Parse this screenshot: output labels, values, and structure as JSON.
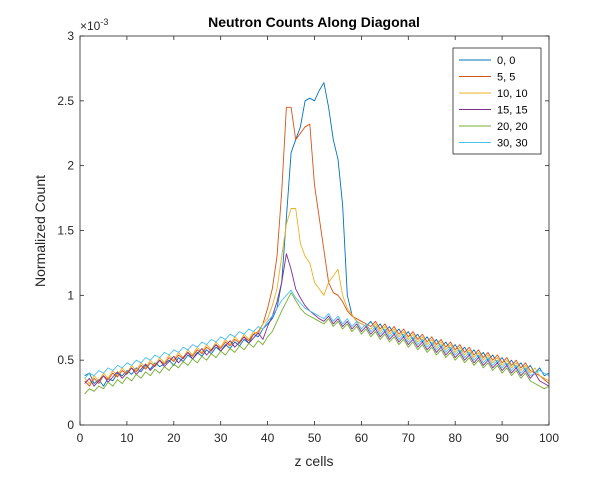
{
  "chart_data": {
    "type": "line",
    "title": "Neutron Counts Along Diagonal",
    "xlabel": "z cells",
    "ylabel": "Normalized Count",
    "y_exponent_label": "×10",
    "y_exponent_power": "-3",
    "xlim": [
      0,
      100
    ],
    "ylim": [
      0,
      3
    ],
    "x_ticks": [
      0,
      10,
      20,
      30,
      40,
      50,
      60,
      70,
      80,
      90,
      100
    ],
    "x_tick_labels": [
      "0",
      "10",
      "20",
      "30",
      "40",
      "50",
      "60",
      "70",
      "80",
      "90",
      "100"
    ],
    "y_ticks": [
      0,
      0.5,
      1,
      1.5,
      2,
      2.5,
      3
    ],
    "y_tick_labels": [
      "0",
      "0.5",
      "1",
      "1.5",
      "2",
      "2.5",
      "3"
    ],
    "grid": false,
    "legend_position": "top-right",
    "x": [
      1,
      2,
      3,
      4,
      5,
      6,
      7,
      8,
      9,
      10,
      11,
      12,
      13,
      14,
      15,
      16,
      17,
      18,
      19,
      20,
      21,
      22,
      23,
      24,
      25,
      26,
      27,
      28,
      29,
      30,
      31,
      32,
      33,
      34,
      35,
      36,
      37,
      38,
      39,
      40,
      41,
      42,
      43,
      44,
      45,
      46,
      47,
      48,
      49,
      50,
      51,
      52,
      53,
      54,
      55,
      56,
      57,
      58,
      59,
      60,
      61,
      62,
      63,
      64,
      65,
      66,
      67,
      68,
      69,
      70,
      71,
      72,
      73,
      74,
      75,
      76,
      77,
      78,
      79,
      80,
      81,
      82,
      83,
      84,
      85,
      86,
      87,
      88,
      89,
      90,
      91,
      92,
      93,
      94,
      95,
      96,
      97,
      98,
      99,
      100
    ],
    "series": [
      {
        "name": "0, 0",
        "color": "#0072BD",
        "values": [
          0.38,
          0.4,
          0.32,
          0.35,
          0.3,
          0.36,
          0.34,
          0.4,
          0.38,
          0.42,
          0.39,
          0.44,
          0.41,
          0.46,
          0.43,
          0.48,
          0.45,
          0.47,
          0.5,
          0.46,
          0.52,
          0.49,
          0.54,
          0.51,
          0.56,
          0.53,
          0.58,
          0.55,
          0.6,
          0.57,
          0.62,
          0.59,
          0.64,
          0.61,
          0.66,
          0.63,
          0.7,
          0.68,
          0.74,
          0.78,
          0.82,
          0.9,
          1.1,
          1.6,
          2.1,
          2.2,
          2.3,
          2.5,
          2.52,
          2.5,
          2.58,
          2.64,
          2.45,
          2.2,
          2.05,
          1.7,
          1.0,
          0.85,
          0.8,
          0.78,
          0.76,
          0.8,
          0.74,
          0.78,
          0.72,
          0.76,
          0.7,
          0.74,
          0.68,
          0.72,
          0.66,
          0.7,
          0.64,
          0.68,
          0.62,
          0.66,
          0.6,
          0.64,
          0.58,
          0.62,
          0.56,
          0.6,
          0.54,
          0.58,
          0.52,
          0.56,
          0.5,
          0.54,
          0.48,
          0.52,
          0.46,
          0.5,
          0.44,
          0.48,
          0.42,
          0.46,
          0.4,
          0.44,
          0.38,
          0.4
        ]
      },
      {
        "name": "5, 5",
        "color": "#D95319",
        "values": [
          0.34,
          0.3,
          0.36,
          0.32,
          0.38,
          0.35,
          0.4,
          0.37,
          0.42,
          0.39,
          0.44,
          0.41,
          0.46,
          0.43,
          0.48,
          0.45,
          0.5,
          0.47,
          0.52,
          0.49,
          0.54,
          0.51,
          0.56,
          0.53,
          0.58,
          0.55,
          0.6,
          0.57,
          0.62,
          0.59,
          0.64,
          0.61,
          0.66,
          0.63,
          0.68,
          0.65,
          0.7,
          0.72,
          0.78,
          0.9,
          1.05,
          1.3,
          1.8,
          2.45,
          2.45,
          2.2,
          2.25,
          2.3,
          2.32,
          1.85,
          1.6,
          1.35,
          1.1,
          1.02,
          1.0,
          0.95,
          0.88,
          0.84,
          0.82,
          0.8,
          0.78,
          0.76,
          0.8,
          0.74,
          0.78,
          0.72,
          0.76,
          0.7,
          0.74,
          0.68,
          0.72,
          0.66,
          0.7,
          0.64,
          0.68,
          0.62,
          0.66,
          0.6,
          0.64,
          0.58,
          0.62,
          0.56,
          0.6,
          0.54,
          0.58,
          0.52,
          0.56,
          0.5,
          0.54,
          0.48,
          0.52,
          0.46,
          0.5,
          0.44,
          0.48,
          0.42,
          0.4,
          0.38,
          0.35,
          0.32
        ]
      },
      {
        "name": "10, 10",
        "color": "#EDB120",
        "values": [
          0.36,
          0.32,
          0.38,
          0.34,
          0.4,
          0.36,
          0.42,
          0.38,
          0.44,
          0.4,
          0.46,
          0.42,
          0.48,
          0.44,
          0.5,
          0.46,
          0.52,
          0.48,
          0.54,
          0.5,
          0.56,
          0.52,
          0.58,
          0.54,
          0.6,
          0.56,
          0.62,
          0.58,
          0.64,
          0.6,
          0.66,
          0.62,
          0.68,
          0.64,
          0.7,
          0.66,
          0.72,
          0.7,
          0.78,
          0.82,
          0.92,
          1.05,
          1.3,
          1.55,
          1.67,
          1.67,
          1.4,
          1.3,
          1.25,
          1.1,
          1.05,
          1.0,
          1.1,
          1.15,
          1.2,
          1.0,
          0.9,
          0.85,
          0.8,
          0.78,
          0.76,
          0.74,
          0.78,
          0.72,
          0.76,
          0.7,
          0.74,
          0.68,
          0.72,
          0.66,
          0.7,
          0.64,
          0.68,
          0.62,
          0.66,
          0.6,
          0.64,
          0.58,
          0.62,
          0.56,
          0.6,
          0.54,
          0.58,
          0.52,
          0.56,
          0.5,
          0.54,
          0.48,
          0.52,
          0.46,
          0.5,
          0.44,
          0.48,
          0.42,
          0.46,
          0.4,
          0.44,
          0.38,
          0.36,
          0.34
        ]
      },
      {
        "name": "15, 15",
        "color": "#7E2F8E",
        "values": [
          0.32,
          0.36,
          0.3,
          0.34,
          0.38,
          0.33,
          0.37,
          0.41,
          0.36,
          0.4,
          0.44,
          0.39,
          0.43,
          0.47,
          0.42,
          0.46,
          0.5,
          0.45,
          0.49,
          0.53,
          0.48,
          0.52,
          0.56,
          0.51,
          0.55,
          0.59,
          0.54,
          0.58,
          0.62,
          0.57,
          0.61,
          0.65,
          0.6,
          0.64,
          0.68,
          0.63,
          0.67,
          0.71,
          0.66,
          0.76,
          0.84,
          0.95,
          1.1,
          1.32,
          1.2,
          1.05,
          0.98,
          0.92,
          0.88,
          0.85,
          0.82,
          0.8,
          0.84,
          0.78,
          0.82,
          0.76,
          0.8,
          0.74,
          0.78,
          0.72,
          0.76,
          0.7,
          0.74,
          0.68,
          0.72,
          0.66,
          0.7,
          0.64,
          0.68,
          0.62,
          0.66,
          0.6,
          0.64,
          0.58,
          0.62,
          0.56,
          0.6,
          0.54,
          0.58,
          0.52,
          0.56,
          0.5,
          0.54,
          0.48,
          0.52,
          0.46,
          0.5,
          0.44,
          0.48,
          0.42,
          0.46,
          0.4,
          0.44,
          0.38,
          0.42,
          0.36,
          0.4,
          0.34,
          0.32,
          0.3
        ]
      },
      {
        "name": "20, 20",
        "color": "#77AC30",
        "values": [
          0.24,
          0.28,
          0.26,
          0.3,
          0.28,
          0.33,
          0.3,
          0.35,
          0.32,
          0.37,
          0.34,
          0.39,
          0.36,
          0.41,
          0.38,
          0.43,
          0.4,
          0.45,
          0.42,
          0.47,
          0.44,
          0.49,
          0.46,
          0.51,
          0.48,
          0.53,
          0.5,
          0.55,
          0.52,
          0.57,
          0.54,
          0.59,
          0.56,
          0.61,
          0.58,
          0.63,
          0.6,
          0.65,
          0.62,
          0.68,
          0.72,
          0.8,
          0.88,
          0.95,
          1.02,
          0.96,
          0.9,
          0.86,
          0.84,
          0.82,
          0.8,
          0.78,
          0.82,
          0.76,
          0.8,
          0.74,
          0.78,
          0.72,
          0.76,
          0.7,
          0.74,
          0.68,
          0.72,
          0.66,
          0.7,
          0.64,
          0.68,
          0.62,
          0.66,
          0.6,
          0.64,
          0.58,
          0.62,
          0.56,
          0.6,
          0.54,
          0.58,
          0.52,
          0.56,
          0.5,
          0.54,
          0.48,
          0.52,
          0.46,
          0.5,
          0.44,
          0.48,
          0.42,
          0.46,
          0.4,
          0.44,
          0.38,
          0.42,
          0.36,
          0.4,
          0.34,
          0.32,
          0.3,
          0.28,
          0.3
        ]
      },
      {
        "name": "30, 30",
        "color": "#4DBEEE",
        "values": [
          0.36,
          0.4,
          0.38,
          0.42,
          0.4,
          0.44,
          0.42,
          0.46,
          0.44,
          0.48,
          0.46,
          0.5,
          0.48,
          0.52,
          0.5,
          0.54,
          0.52,
          0.56,
          0.54,
          0.58,
          0.56,
          0.6,
          0.58,
          0.62,
          0.6,
          0.64,
          0.62,
          0.66,
          0.64,
          0.68,
          0.66,
          0.7,
          0.68,
          0.72,
          0.7,
          0.74,
          0.72,
          0.76,
          0.74,
          0.8,
          0.84,
          0.9,
          0.96,
          1.0,
          1.04,
          0.98,
          0.94,
          0.9,
          0.88,
          0.86,
          0.84,
          0.82,
          0.86,
          0.8,
          0.84,
          0.78,
          0.82,
          0.76,
          0.8,
          0.74,
          0.78,
          0.72,
          0.76,
          0.7,
          0.74,
          0.68,
          0.72,
          0.66,
          0.7,
          0.64,
          0.68,
          0.62,
          0.66,
          0.6,
          0.64,
          0.58,
          0.62,
          0.56,
          0.6,
          0.54,
          0.58,
          0.52,
          0.56,
          0.5,
          0.54,
          0.48,
          0.52,
          0.46,
          0.5,
          0.44,
          0.48,
          0.42,
          0.46,
          0.4,
          0.44,
          0.38,
          0.4,
          0.42,
          0.4,
          0.38
        ]
      }
    ]
  }
}
